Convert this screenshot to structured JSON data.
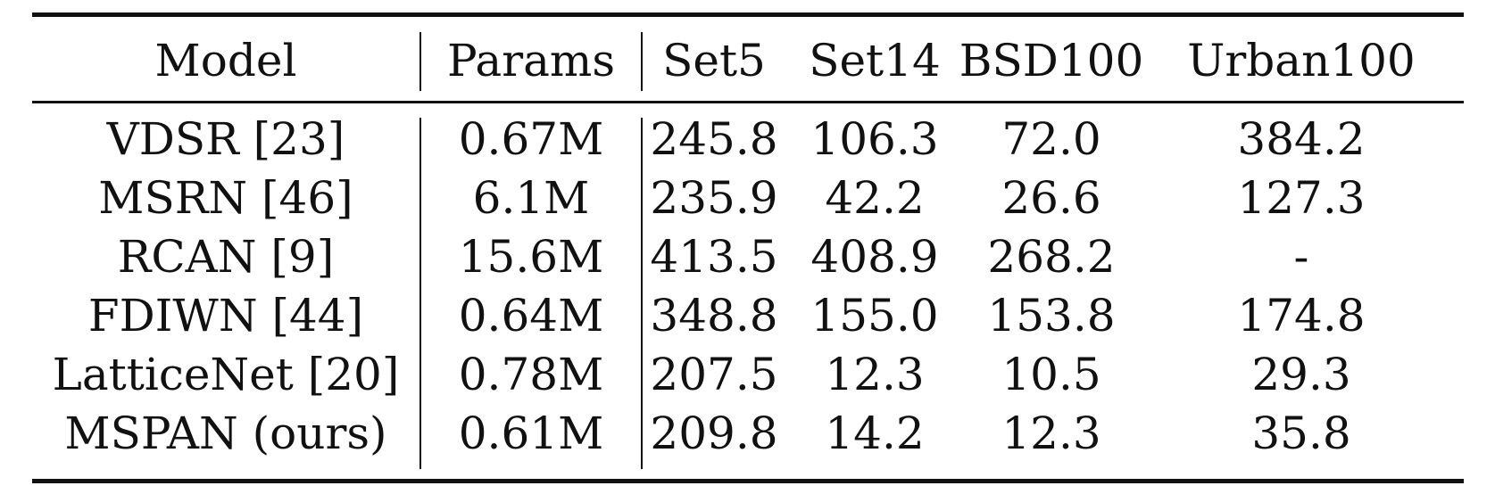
{
  "table": {
    "headers": [
      "Model",
      "Params",
      "Set5",
      "Set14",
      "BSD100",
      "Urban100"
    ],
    "rows": [
      [
        "VDSR [23]",
        "0.67M",
        "245.8",
        "106.3",
        "72.0",
        "384.2"
      ],
      [
        "MSRN [46]",
        "6.1M",
        "235.9",
        "42.2",
        "26.6",
        "127.3"
      ],
      [
        "RCAN [9]",
        "15.6M",
        "413.5",
        "408.9",
        "268.2",
        "-"
      ],
      [
        "FDIWN [44]",
        "0.64M",
        "348.8",
        "155.0",
        "153.8",
        "174.8"
      ],
      [
        "LatticeNet [20]",
        "0.78M",
        "207.5",
        "12.3",
        "10.5",
        "29.3"
      ],
      [
        "MSPAN (ours)",
        "0.61M",
        "209.8",
        "14.2",
        "12.3",
        "35.8"
      ]
    ]
  }
}
